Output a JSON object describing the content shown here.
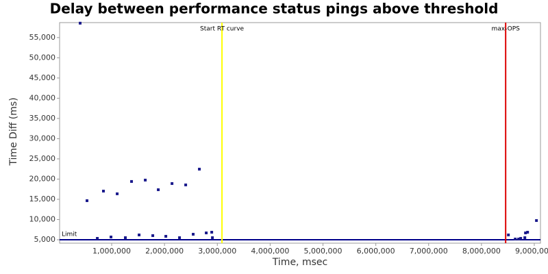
{
  "chart_data": {
    "type": "scatter",
    "title": "Delay between performance status pings above threshold",
    "x_label": "Time, msec",
    "y_label": "Time Diff (ms)",
    "xlim": [
      14000,
      9117000
    ],
    "ylim": [
      4150,
      58700
    ],
    "xticks": [
      {
        "value": 1000000,
        "label": "1,000,000"
      },
      {
        "value": 2000000,
        "label": "2,000,000"
      },
      {
        "value": 3000000,
        "label": "3,000,000"
      },
      {
        "value": 4000000,
        "label": "4,000,000"
      },
      {
        "value": 5000000,
        "label": "5,000,000"
      },
      {
        "value": 6000000,
        "label": "6,000,000"
      },
      {
        "value": 7000000,
        "label": "7,000,000"
      },
      {
        "value": 8000000,
        "label": "8,000,000"
      },
      {
        "value": 9000000,
        "label": "9,000,000"
      }
    ],
    "yticks": [
      {
        "value": 5000,
        "label": "5,000"
      },
      {
        "value": 10000,
        "label": "10,000"
      },
      {
        "value": 15000,
        "label": "15,000"
      },
      {
        "value": 20000,
        "label": "20,000"
      },
      {
        "value": 25000,
        "label": "25,000"
      },
      {
        "value": 30000,
        "label": "30,000"
      },
      {
        "value": 35000,
        "label": "35,000"
      },
      {
        "value": 40000,
        "label": "40,000"
      },
      {
        "value": 45000,
        "label": "45,000"
      },
      {
        "value": 50000,
        "label": "50,000"
      },
      {
        "value": 55000,
        "label": "55,000"
      }
    ],
    "vlines": [
      {
        "label": "Start RT curve",
        "value": 3088000,
        "color": "#ffff00"
      },
      {
        "label": "max-OPS",
        "value": 8458000,
        "color": "#dd0000"
      }
    ],
    "hlines": [
      {
        "label": "Limit",
        "value": 5000,
        "color": "#00008b"
      }
    ],
    "series": [
      {
        "color": "#1a1a8c",
        "x": [
          403000,
          533000,
          728000,
          844000,
          987000,
          1104000,
          1259000,
          1376000,
          1519000,
          1636000,
          1778000,
          1882000,
          2025000,
          2142000,
          2284000,
          2401000,
          2543000,
          2660000,
          2790000,
          2894000,
          2907000,
          8510000,
          8640000,
          8704000,
          8743000,
          8821000,
          8834000,
          8873000,
          9041000
        ],
        "values": [
          58560,
          14660,
          5340,
          17030,
          5680,
          16360,
          5510,
          19410,
          6190,
          19750,
          6020,
          17370,
          5850,
          18900,
          5510,
          18560,
          6360,
          22460,
          6690,
          6860,
          5510,
          6190,
          5170,
          5170,
          5340,
          5510,
          6690,
          6860,
          9750
        ]
      }
    ]
  }
}
